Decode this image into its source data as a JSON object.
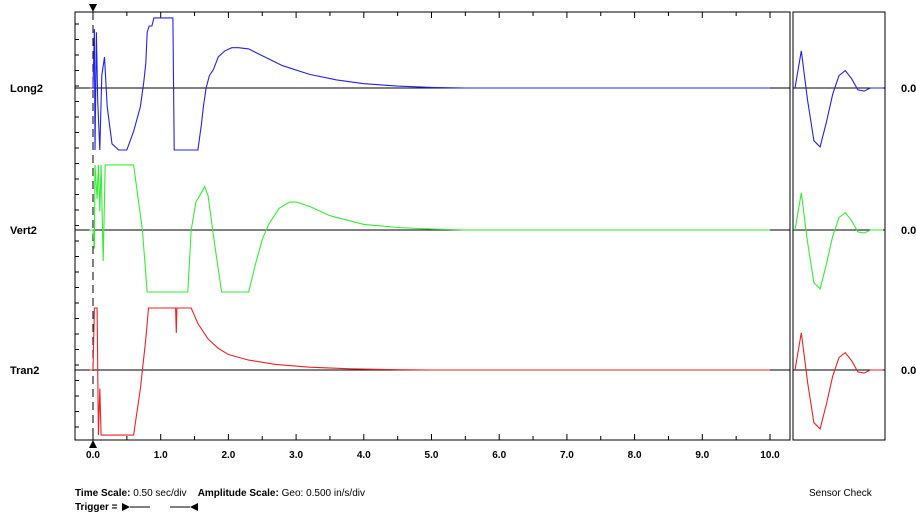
{
  "chart_data": {
    "type": "line",
    "x_ticks": [
      "0.0",
      "1.0",
      "2.0",
      "3.0",
      "4.0",
      "5.0",
      "6.0",
      "7.0",
      "8.0",
      "9.0",
      "10.0"
    ],
    "xlim": [
      -0.25,
      10.25
    ],
    "channels": [
      {
        "name": "Long2",
        "color": "#2222ee",
        "value_label": "0.0",
        "points": [
          [
            -0.05,
            0
          ],
          [
            0.0,
            0
          ],
          [
            0.02,
            0.95
          ],
          [
            0.03,
            -1
          ],
          [
            0.05,
            0.9
          ],
          [
            0.07,
            -0.2
          ],
          [
            0.1,
            -1
          ],
          [
            0.13,
            0.2
          ],
          [
            0.17,
            0.5
          ],
          [
            0.21,
            -0.3
          ],
          [
            0.28,
            -0.9
          ],
          [
            0.38,
            -1
          ],
          [
            0.5,
            -1
          ],
          [
            0.6,
            -0.7
          ],
          [
            0.7,
            -0.3
          ],
          [
            0.75,
            0.1
          ],
          [
            0.78,
            0.4
          ],
          [
            0.8,
            0.9
          ],
          [
            0.83,
            1
          ],
          [
            0.87,
            1
          ],
          [
            0.9,
            1.13
          ],
          [
            1.18,
            1.13
          ],
          [
            1.2,
            -1
          ],
          [
            1.55,
            -1
          ],
          [
            1.6,
            -0.6
          ],
          [
            1.63,
            -0.3
          ],
          [
            1.67,
            0
          ],
          [
            1.72,
            0.2
          ],
          [
            1.78,
            0.3
          ],
          [
            1.85,
            0.5
          ],
          [
            1.9,
            0.55
          ],
          [
            1.95,
            0.6
          ],
          [
            2.05,
            0.65
          ],
          [
            2.15,
            0.65
          ],
          [
            2.3,
            0.63
          ],
          [
            2.5,
            0.52
          ],
          [
            2.8,
            0.36
          ],
          [
            3.2,
            0.22
          ],
          [
            3.6,
            0.13
          ],
          [
            4.0,
            0.07
          ],
          [
            4.5,
            0.03
          ],
          [
            5.0,
            0.01
          ],
          [
            5.5,
            0
          ],
          [
            10.0,
            0
          ]
        ],
        "check_points": [
          [
            0,
            0
          ],
          [
            0.1,
            0.6
          ],
          [
            0.2,
            -0.2
          ],
          [
            0.3,
            -0.85
          ],
          [
            0.4,
            -0.95
          ],
          [
            0.5,
            -0.55
          ],
          [
            0.6,
            -0.1
          ],
          [
            0.7,
            0.2
          ],
          [
            0.8,
            0.28
          ],
          [
            0.9,
            0.15
          ],
          [
            1.0,
            -0.03
          ],
          [
            1.1,
            -0.05
          ],
          [
            1.2,
            0
          ],
          [
            1.4,
            0
          ]
        ]
      },
      {
        "name": "Vert2",
        "color": "#33ee33",
        "value_label": "0.0",
        "points": [
          [
            -0.05,
            0
          ],
          [
            0.0,
            0
          ],
          [
            0.02,
            -0.3
          ],
          [
            0.03,
            1.05
          ],
          [
            0.06,
            0.5
          ],
          [
            0.08,
            1.05
          ],
          [
            0.1,
            0.3
          ],
          [
            0.12,
            1.05
          ],
          [
            0.15,
            -0.5
          ],
          [
            0.18,
            1.05
          ],
          [
            0.2,
            1.05
          ],
          [
            0.6,
            1.05
          ],
          [
            0.73,
            0
          ],
          [
            0.8,
            -1
          ],
          [
            1.4,
            -1
          ],
          [
            1.45,
            0
          ],
          [
            1.52,
            0.45
          ],
          [
            1.6,
            0.6
          ],
          [
            1.65,
            0.7
          ],
          [
            1.7,
            0.55
          ],
          [
            1.78,
            -0.1
          ],
          [
            1.9,
            -1
          ],
          [
            2.3,
            -1
          ],
          [
            2.4,
            -0.55
          ],
          [
            2.5,
            -0.15
          ],
          [
            2.6,
            0.1
          ],
          [
            2.75,
            0.35
          ],
          [
            2.9,
            0.45
          ],
          [
            3.0,
            0.45
          ],
          [
            3.2,
            0.38
          ],
          [
            3.5,
            0.23
          ],
          [
            4.0,
            0.09
          ],
          [
            4.5,
            0.04
          ],
          [
            5.0,
            0.015
          ],
          [
            5.5,
            0
          ],
          [
            10.0,
            0
          ]
        ],
        "check_points": [
          [
            0,
            0
          ],
          [
            0.1,
            0.6
          ],
          [
            0.2,
            -0.2
          ],
          [
            0.3,
            -0.85
          ],
          [
            0.4,
            -0.95
          ],
          [
            0.5,
            -0.55
          ],
          [
            0.6,
            -0.1
          ],
          [
            0.7,
            0.2
          ],
          [
            0.8,
            0.28
          ],
          [
            0.9,
            0.15
          ],
          [
            1.0,
            -0.03
          ],
          [
            1.1,
            -0.05
          ],
          [
            1.2,
            0
          ],
          [
            1.4,
            0
          ]
        ]
      },
      {
        "name": "Tran2",
        "color": "#ee2222",
        "value_label": "0.0",
        "points": [
          [
            -0.05,
            0
          ],
          [
            0.0,
            0
          ],
          [
            0.02,
            1.0
          ],
          [
            0.06,
            1.0
          ],
          [
            0.08,
            -1.05
          ],
          [
            0.1,
            -0.3
          ],
          [
            0.12,
            -1.05
          ],
          [
            0.6,
            -1.05
          ],
          [
            0.7,
            -0.3
          ],
          [
            0.78,
            0.5
          ],
          [
            0.82,
            1.0
          ],
          [
            1.22,
            1.0
          ],
          [
            1.23,
            0.6
          ],
          [
            1.24,
            1.0
          ],
          [
            1.45,
            1.0
          ],
          [
            1.55,
            0.75
          ],
          [
            1.7,
            0.5
          ],
          [
            1.85,
            0.35
          ],
          [
            2.0,
            0.25
          ],
          [
            2.3,
            0.16
          ],
          [
            2.7,
            0.09
          ],
          [
            3.2,
            0.045
          ],
          [
            3.8,
            0.02
          ],
          [
            4.5,
            0.005
          ],
          [
            5.0,
            0
          ],
          [
            10.0,
            0
          ]
        ],
        "check_points": [
          [
            0,
            0
          ],
          [
            0.1,
            0.6
          ],
          [
            0.2,
            -0.2
          ],
          [
            0.3,
            -0.85
          ],
          [
            0.4,
            -0.95
          ],
          [
            0.5,
            -0.55
          ],
          [
            0.6,
            -0.1
          ],
          [
            0.7,
            0.2
          ],
          [
            0.8,
            0.28
          ],
          [
            0.9,
            0.15
          ],
          [
            1.0,
            -0.03
          ],
          [
            1.1,
            -0.05
          ],
          [
            1.2,
            0
          ],
          [
            1.4,
            0
          ]
        ]
      }
    ]
  },
  "footer": {
    "time_scale_label": "Time Scale:",
    "time_scale_value": "0.50 sec/div",
    "amplitude_scale_label": "Amplitude Scale:",
    "amplitude_scale_value": "Geo: 0.500 in/s/div",
    "trigger_label": "Trigger =",
    "sensor_check": "Sensor Check"
  }
}
